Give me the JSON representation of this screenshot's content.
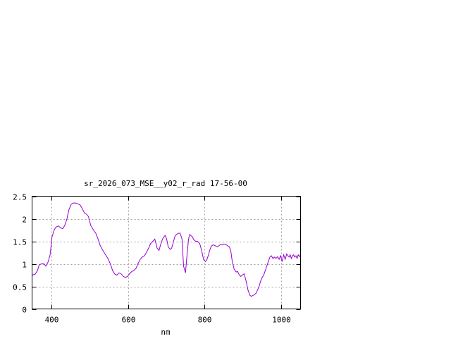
{
  "chart_data": {
    "type": "line",
    "title": "sr_2026_073_MSE__y02_r_rad 17-56-00",
    "xlabel": "nm",
    "ylabel": "",
    "xlim": [
      350,
      1050
    ],
    "ylim": [
      0,
      2.5
    ],
    "x_ticks": [
      400,
      600,
      800,
      1000
    ],
    "x_tick_labels": [
      "400",
      "600",
      "800",
      "1000"
    ],
    "y_ticks": [
      0,
      0.5,
      1,
      1.5,
      2,
      2.5
    ],
    "y_tick_labels": [
      "0",
      "0.5",
      "1",
      "1.5",
      "2",
      "2.5"
    ],
    "grid": true,
    "series_color": "#9400d3",
    "series": [
      {
        "x": [
          350,
          358,
          364,
          369,
          375,
          381,
          386,
          392,
          397,
          402,
          408,
          413,
          419,
          424,
          430,
          435,
          441,
          446,
          452,
          457,
          463,
          470,
          476,
          481,
          487,
          492,
          497,
          503,
          510,
          516,
          522,
          527,
          533,
          538,
          544,
          549,
          555,
          560,
          566,
          571,
          577,
          582,
          588,
          593,
          599,
          604,
          610,
          615,
          621,
          626,
          632,
          637,
          643,
          648,
          654,
          659,
          665,
          670,
          676,
          681,
          685,
          690,
          694,
          697,
          701,
          705,
          710,
          714,
          719,
          723,
          728,
          732,
          736,
          741,
          745,
          750,
          754,
          758,
          761,
          764,
          768,
          772,
          777,
          781,
          787,
          792,
          797,
          802,
          806,
          810,
          814,
          818,
          823,
          828,
          833,
          837,
          841,
          845,
          850,
          855,
          860,
          864,
          868,
          872,
          877,
          882,
          886,
          890,
          894,
          898,
          903,
          908,
          913,
          918,
          922,
          926,
          930,
          934,
          938,
          942,
          946,
          950,
          954,
          958,
          962,
          966,
          970,
          974,
          978,
          982,
          986,
          990,
          994,
          998,
          1002,
          1006,
          1010,
          1014,
          1017,
          1020,
          1023,
          1026,
          1029,
          1032,
          1035,
          1038,
          1041,
          1044,
          1047,
          1050
        ],
        "y": [
          0.75,
          0.77,
          0.85,
          0.98,
          1.0,
          1.0,
          0.95,
          1.05,
          1.2,
          1.6,
          1.76,
          1.82,
          1.84,
          1.8,
          1.78,
          1.85,
          2.0,
          2.2,
          2.32,
          2.35,
          2.35,
          2.33,
          2.3,
          2.22,
          2.12,
          2.1,
          2.05,
          1.85,
          1.75,
          1.68,
          1.55,
          1.42,
          1.32,
          1.25,
          1.17,
          1.1,
          0.98,
          0.85,
          0.77,
          0.75,
          0.8,
          0.78,
          0.72,
          0.7,
          0.72,
          0.78,
          0.83,
          0.85,
          0.9,
          1.0,
          1.1,
          1.15,
          1.18,
          1.25,
          1.35,
          1.45,
          1.5,
          1.55,
          1.35,
          1.3,
          1.42,
          1.55,
          1.6,
          1.63,
          1.55,
          1.38,
          1.32,
          1.35,
          1.5,
          1.62,
          1.66,
          1.68,
          1.68,
          1.55,
          0.95,
          0.8,
          1.2,
          1.55,
          1.65,
          1.63,
          1.6,
          1.53,
          1.5,
          1.5,
          1.45,
          1.3,
          1.1,
          1.05,
          1.1,
          1.2,
          1.32,
          1.4,
          1.42,
          1.4,
          1.38,
          1.4,
          1.43,
          1.42,
          1.44,
          1.43,
          1.4,
          1.38,
          1.3,
          1.05,
          0.88,
          0.82,
          0.83,
          0.76,
          0.72,
          0.75,
          0.78,
          0.62,
          0.42,
          0.3,
          0.28,
          0.3,
          0.32,
          0.35,
          0.42,
          0.5,
          0.62,
          0.7,
          0.75,
          0.85,
          0.95,
          1.05,
          1.15,
          1.18,
          1.12,
          1.15,
          1.12,
          1.16,
          1.1,
          1.18,
          1.05,
          1.2,
          1.1,
          1.22,
          1.18,
          1.15,
          1.2,
          1.12,
          1.18,
          1.2,
          1.15,
          1.18,
          1.12,
          1.2,
          1.16,
          1.2
        ]
      }
    ]
  }
}
